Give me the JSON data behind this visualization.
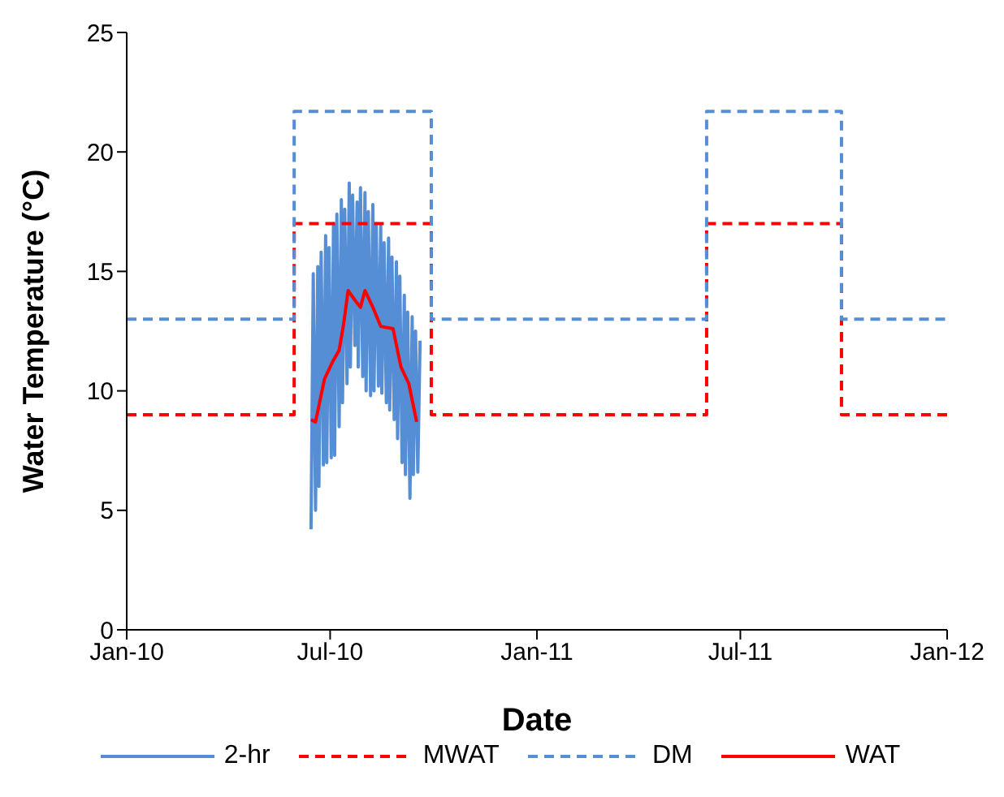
{
  "chart_data": {
    "type": "line",
    "xlabel": "Date",
    "ylabel": "Water Temperature (°C)",
    "xlim": [
      "2010-01-01",
      "2012-01-01"
    ],
    "xticks": [
      {
        "value": "2010-01-01",
        "label": "Jan-10"
      },
      {
        "value": "2010-07-01",
        "label": "Jul-10"
      },
      {
        "value": "2011-01-01",
        "label": "Jan-11"
      },
      {
        "value": "2011-07-01",
        "label": "Jul-11"
      },
      {
        "value": "2012-01-01",
        "label": "Jan-12"
      }
    ],
    "ylim": [
      0,
      25
    ],
    "yticks": [
      0,
      5,
      10,
      15,
      20,
      25
    ],
    "legend": "bottom",
    "series": [
      {
        "name": "2-hr",
        "color": "#558ed5",
        "line_style": "solid",
        "x": [
          "2010-06-14",
          "2010-06-16",
          "2010-06-18",
          "2010-06-20",
          "2010-06-21",
          "2010-06-23",
          "2010-06-25",
          "2010-06-27",
          "2010-06-28",
          "2010-06-30",
          "2010-07-02",
          "2010-07-04",
          "2010-07-05",
          "2010-07-07",
          "2010-07-09",
          "2010-07-11",
          "2010-07-12",
          "2010-07-14",
          "2010-07-16",
          "2010-07-18",
          "2010-07-19",
          "2010-07-21",
          "2010-07-23",
          "2010-07-25",
          "2010-07-26",
          "2010-07-28",
          "2010-07-30",
          "2010-08-01",
          "2010-08-02",
          "2010-08-04",
          "2010-08-06",
          "2010-08-08",
          "2010-08-09",
          "2010-08-11",
          "2010-08-13",
          "2010-08-15",
          "2010-08-16",
          "2010-08-18",
          "2010-08-20",
          "2010-08-22",
          "2010-08-23",
          "2010-08-25",
          "2010-08-27",
          "2010-08-29",
          "2010-08-30",
          "2010-09-01",
          "2010-09-03",
          "2010-09-05",
          "2010-09-06",
          "2010-09-08",
          "2010-09-10",
          "2010-09-12",
          "2010-09-13",
          "2010-09-15",
          "2010-09-17",
          "2010-09-19"
        ],
        "values": [
          4.2,
          14.9,
          5.0,
          15.2,
          6.0,
          15.8,
          6.9,
          16.5,
          7.0,
          16.0,
          7.2,
          17.0,
          7.3,
          17.4,
          8.5,
          18.0,
          9.5,
          17.6,
          10.3,
          18.7,
          11.0,
          18.2,
          11.9,
          17.9,
          11.0,
          18.5,
          10.6,
          18.3,
          10.0,
          17.5,
          9.8,
          17.8,
          10.0,
          17.0,
          10.2,
          16.9,
          9.9,
          16.2,
          9.5,
          16.4,
          9.2,
          15.6,
          8.8,
          15.4,
          8.0,
          14.8,
          7.0,
          14.0,
          6.5,
          13.3,
          5.5,
          13.1,
          6.5,
          12.5,
          6.6,
          12.1
        ]
      },
      {
        "name": "MWAT",
        "type": "step",
        "color": "#ff0000",
        "line_style": "dashed",
        "x": [
          "2010-01-01",
          "2010-05-30",
          "2010-09-29",
          "2011-06-01",
          "2011-09-29",
          "2012-01-01"
        ],
        "values": [
          9,
          17,
          9,
          17,
          9,
          9
        ]
      },
      {
        "name": "DM",
        "type": "step",
        "color": "#558ed5",
        "line_style": "dashed",
        "x": [
          "2010-01-01",
          "2010-05-30",
          "2010-09-29",
          "2011-06-01",
          "2011-09-29",
          "2012-01-01"
        ],
        "values": [
          13,
          21.7,
          13,
          21.7,
          13,
          13
        ]
      },
      {
        "name": "WAT",
        "color": "#ff0000",
        "line_style": "solid",
        "x": [
          "2010-06-14",
          "2010-06-18",
          "2010-06-26",
          "2010-07-03",
          "2010-07-09",
          "2010-07-13",
          "2010-07-17",
          "2010-07-23",
          "2010-07-28",
          "2010-08-01",
          "2010-08-08",
          "2010-08-15",
          "2010-08-26",
          "2010-09-02",
          "2010-09-09",
          "2010-09-16"
        ],
        "values": [
          8.8,
          8.7,
          10.5,
          11.2,
          11.7,
          12.8,
          14.2,
          13.8,
          13.5,
          14.2,
          13.5,
          12.7,
          12.6,
          11.0,
          10.3,
          8.7
        ]
      }
    ]
  }
}
